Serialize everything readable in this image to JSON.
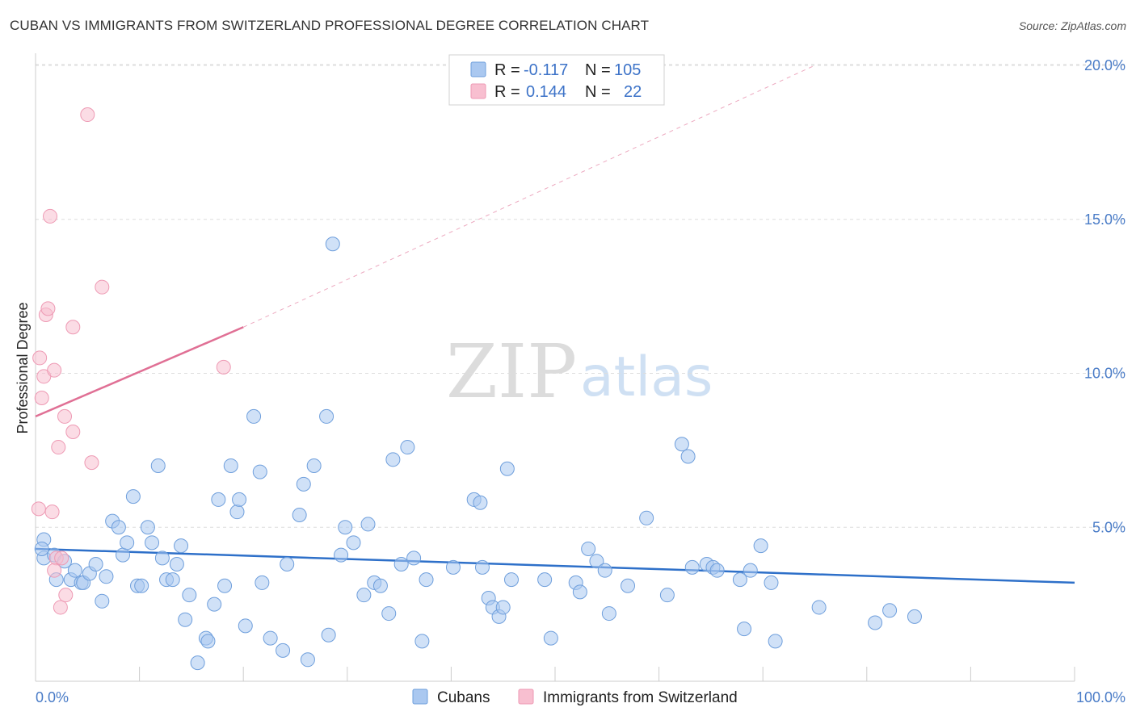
{
  "title": "CUBAN VS IMMIGRANTS FROM SWITZERLAND PROFESSIONAL DEGREE CORRELATION CHART",
  "source": "Source: ZipAtlas.com",
  "watermark": {
    "part1": "ZIP",
    "part2": "atlas"
  },
  "legend_top": {
    "r_label": "R =",
    "n_label": "N =",
    "rows": [
      {
        "r": "-0.117",
        "n": "105",
        "color": "#aac8f0"
      },
      {
        "r": "0.144",
        "n": "22",
        "color": "#f8bfd0"
      }
    ]
  },
  "bottom_legend": [
    "Cubans",
    "Immigrants from Switzerland"
  ],
  "chart_data": {
    "type": "scatter",
    "title": "CUBAN VS IMMIGRANTS FROM SWITZERLAND PROFESSIONAL DEGREE CORRELATION CHART",
    "xlabel": "",
    "ylabel": "Professional Degree",
    "xlim": [
      0,
      100
    ],
    "ylim": [
      0,
      20
    ],
    "x_tick_labels": [
      "0.0%",
      "100.0%"
    ],
    "y_ticks": [
      5,
      10,
      15,
      20
    ],
    "y_tick_labels": [
      "5.0%",
      "10.0%",
      "15.0%",
      "20.0%"
    ],
    "grid": true,
    "series": [
      {
        "name": "Cubans",
        "color": "#aac8f0",
        "stroke": "#6f9fdc",
        "trend": {
          "x0": 0,
          "y0": 4.3,
          "x1": 100,
          "y1": 3.2,
          "color": "#2e70c9"
        },
        "points": [
          [
            0.8,
            4.6
          ],
          [
            0.8,
            4.0
          ],
          [
            1.8,
            4.1
          ],
          [
            2.0,
            3.3
          ],
          [
            2.8,
            3.9
          ],
          [
            3.4,
            3.3
          ],
          [
            3.8,
            3.6
          ],
          [
            4.4,
            3.2
          ],
          [
            4.6,
            3.2
          ],
          [
            5.2,
            3.5
          ],
          [
            5.8,
            3.8
          ],
          [
            6.4,
            2.6
          ],
          [
            6.8,
            3.4
          ],
          [
            7.4,
            5.2
          ],
          [
            8.0,
            5.0
          ],
          [
            8.4,
            4.1
          ],
          [
            8.8,
            4.5
          ],
          [
            9.4,
            6.0
          ],
          [
            9.8,
            3.1
          ],
          [
            10.2,
            3.1
          ],
          [
            10.8,
            5.0
          ],
          [
            11.2,
            4.5
          ],
          [
            11.8,
            7.0
          ],
          [
            12.2,
            4.0
          ],
          [
            12.6,
            3.3
          ],
          [
            13.2,
            3.3
          ],
          [
            13.6,
            3.8
          ],
          [
            14.0,
            4.4
          ],
          [
            14.4,
            2.0
          ],
          [
            14.8,
            2.8
          ],
          [
            15.6,
            0.6
          ],
          [
            16.4,
            1.4
          ],
          [
            16.6,
            1.3
          ],
          [
            17.2,
            2.5
          ],
          [
            17.6,
            5.9
          ],
          [
            18.2,
            3.1
          ],
          [
            18.8,
            7.0
          ],
          [
            19.4,
            5.5
          ],
          [
            19.6,
            5.9
          ],
          [
            20.2,
            1.8
          ],
          [
            21.0,
            8.6
          ],
          [
            21.6,
            6.8
          ],
          [
            21.8,
            3.2
          ],
          [
            22.6,
            1.4
          ],
          [
            23.8,
            1.0
          ],
          [
            24.2,
            3.8
          ],
          [
            25.4,
            5.4
          ],
          [
            25.8,
            6.4
          ],
          [
            26.2,
            0.7
          ],
          [
            26.8,
            7.0
          ],
          [
            28.0,
            8.6
          ],
          [
            28.2,
            1.5
          ],
          [
            28.6,
            14.2
          ],
          [
            29.4,
            4.1
          ],
          [
            29.8,
            5.0
          ],
          [
            30.6,
            4.5
          ],
          [
            31.6,
            2.8
          ],
          [
            32.0,
            5.1
          ],
          [
            32.6,
            3.2
          ],
          [
            33.2,
            3.1
          ],
          [
            34.0,
            2.2
          ],
          [
            34.4,
            7.2
          ],
          [
            35.2,
            3.8
          ],
          [
            35.8,
            7.6
          ],
          [
            36.4,
            4.0
          ],
          [
            37.2,
            1.3
          ],
          [
            37.6,
            3.3
          ],
          [
            40.2,
            3.7
          ],
          [
            42.2,
            5.9
          ],
          [
            42.8,
            5.8
          ],
          [
            43.0,
            3.7
          ],
          [
            43.6,
            2.7
          ],
          [
            44.0,
            2.4
          ],
          [
            44.6,
            2.1
          ],
          [
            45.0,
            2.4
          ],
          [
            45.4,
            6.9
          ],
          [
            45.8,
            3.3
          ],
          [
            49.0,
            3.3
          ],
          [
            49.6,
            1.4
          ],
          [
            52.0,
            3.2
          ],
          [
            52.4,
            2.9
          ],
          [
            53.2,
            4.3
          ],
          [
            54.0,
            3.9
          ],
          [
            54.8,
            3.6
          ],
          [
            55.2,
            2.2
          ],
          [
            57.0,
            3.1
          ],
          [
            58.8,
            5.3
          ],
          [
            60.8,
            2.8
          ],
          [
            62.2,
            7.7
          ],
          [
            62.8,
            7.3
          ],
          [
            63.2,
            3.7
          ],
          [
            64.6,
            3.8
          ],
          [
            65.2,
            3.7
          ],
          [
            65.6,
            3.6
          ],
          [
            67.8,
            3.3
          ],
          [
            68.2,
            1.7
          ],
          [
            68.8,
            3.6
          ],
          [
            69.8,
            4.4
          ],
          [
            70.8,
            3.2
          ],
          [
            71.2,
            1.3
          ],
          [
            75.4,
            2.4
          ],
          [
            80.8,
            1.9
          ],
          [
            82.2,
            2.3
          ],
          [
            84.6,
            2.1
          ],
          [
            0.6,
            4.3
          ]
        ]
      },
      {
        "name": "Immigrants from Switzerland",
        "color": "#f8bfd0",
        "stroke": "#ee9ab4",
        "trend": {
          "x0": 0,
          "y0": 8.6,
          "x1": 20,
          "y1": 11.5,
          "color": "#e07095",
          "dash_to": {
            "x": 75,
            "y": 20
          }
        },
        "points": [
          [
            0.3,
            5.6
          ],
          [
            0.4,
            10.5
          ],
          [
            0.6,
            9.2
          ],
          [
            0.8,
            9.9
          ],
          [
            1.0,
            11.9
          ],
          [
            1.2,
            12.1
          ],
          [
            1.4,
            15.1
          ],
          [
            1.6,
            5.5
          ],
          [
            1.8,
            10.1
          ],
          [
            2.0,
            4.0
          ],
          [
            2.2,
            7.6
          ],
          [
            2.4,
            2.4
          ],
          [
            2.8,
            8.6
          ],
          [
            2.9,
            2.8
          ],
          [
            3.6,
            11.5
          ],
          [
            3.6,
            8.1
          ],
          [
            5.4,
            7.1
          ],
          [
            5.0,
            18.4
          ],
          [
            6.4,
            12.8
          ],
          [
            18.1,
            10.2
          ],
          [
            2.5,
            4.0
          ],
          [
            1.8,
            3.6
          ]
        ]
      }
    ]
  }
}
